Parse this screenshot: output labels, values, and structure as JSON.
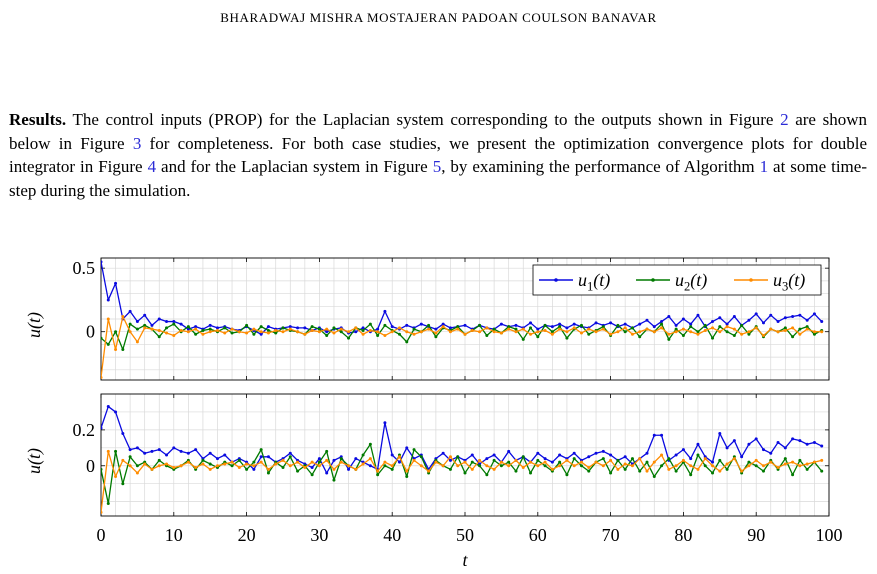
{
  "header": {
    "running_head": "BHARADWAJ MISHRA MOSTAJERAN PADOAN COULSON BANAVAR"
  },
  "paragraph": {
    "lead": "Results.",
    "text1": " The control inputs (PROP) for the Laplacian system corresponding to the outputs shown in Figure ",
    "ref_fig2": "2",
    "text2": " are shown below in Figure ",
    "ref_fig3": "3",
    "text3": " for completeness. For both case studies, we present the optimization convergence plots for double integrator in Figure ",
    "ref_fig4": "4",
    "text4": " and for the Laplacian system in Figure ",
    "ref_fig5": "5",
    "text5": ", by examining the performance of Algorithm ",
    "ref_alg1": "1",
    "text6": " at some time-step during the simulation."
  },
  "colors": {
    "u1": "#0a0ae0",
    "u2": "#007a00",
    "u3": "#ff8c00",
    "ref": "#2a2ad6"
  },
  "chart_data": [
    {
      "type": "line",
      "ylabel": "u(t)",
      "xlim": [
        0,
        100
      ],
      "ylim": [
        -0.38,
        0.58
      ],
      "y_ticks": [
        0,
        0.5
      ],
      "y_tick_labels": [
        "0",
        "0.5"
      ],
      "grid": true,
      "legend": "top-right",
      "legend_entries": [
        "u1(t)",
        "u2(t)",
        "u3(t)"
      ],
      "x": [
        0,
        1,
        2,
        3,
        4,
        5,
        6,
        7,
        8,
        9,
        10,
        11,
        12,
        13,
        14,
        15,
        16,
        17,
        18,
        19,
        20,
        21,
        22,
        23,
        24,
        25,
        26,
        27,
        28,
        29,
        30,
        31,
        32,
        33,
        34,
        35,
        36,
        37,
        38,
        39,
        40,
        41,
        42,
        43,
        44,
        45,
        46,
        47,
        48,
        49,
        50,
        51,
        52,
        53,
        54,
        55,
        56,
        57,
        58,
        59,
        60,
        61,
        62,
        63,
        64,
        65,
        66,
        67,
        68,
        69,
        70,
        71,
        72,
        73,
        74,
        75,
        76,
        77,
        78,
        79,
        80,
        81,
        82,
        83,
        84,
        85,
        86,
        87,
        88,
        89,
        90,
        91,
        92,
        93,
        94,
        95,
        96,
        97,
        98,
        99
      ],
      "series": [
        {
          "name": "u1(t)",
          "color": "#0a0ae0",
          "values": [
            0.55,
            0.25,
            0.38,
            0.1,
            0.16,
            0.08,
            0.13,
            0.05,
            0.1,
            0.08,
            0.08,
            0.06,
            0.02,
            0.04,
            0.02,
            0.05,
            0.03,
            0.04,
            0.02,
            0.01,
            0.04,
            0.01,
            -0.02,
            0.04,
            0.02,
            0.03,
            0.04,
            0.03,
            0.03,
            0.01,
            0.03,
            0.0,
            0.02,
            0.03,
            -0.01,
            0.0,
            0.03,
            0.0,
            0.02,
            0.16,
            0.04,
            0.02,
            0.05,
            0.03,
            0.06,
            0.04,
            0.02,
            0.06,
            0.03,
            0.04,
            0.05,
            0.02,
            0.05,
            0.03,
            0.02,
            0.06,
            0.04,
            0.05,
            0.03,
            0.07,
            0.02,
            0.05,
            0.04,
            0.06,
            0.03,
            0.06,
            0.04,
            0.03,
            0.07,
            0.05,
            0.07,
            0.04,
            0.06,
            0.03,
            0.06,
            0.09,
            0.04,
            0.08,
            0.12,
            0.05,
            0.1,
            0.06,
            0.13,
            0.04,
            0.08,
            0.11,
            0.06,
            0.12,
            0.05,
            0.09,
            0.14,
            0.07,
            0.13,
            0.08,
            0.11,
            0.12,
            0.13,
            0.09,
            0.14,
            0.08
          ]
        },
        {
          "name": "u2(t)",
          "color": "#007a00",
          "values": [
            -0.05,
            -0.1,
            0.0,
            -0.14,
            0.06,
            0.02,
            0.05,
            0.02,
            -0.04,
            0.03,
            0.06,
            0.0,
            0.04,
            -0.02,
            0.01,
            0.02,
            0.0,
            0.03,
            -0.01,
            0.0,
            0.05,
            -0.02,
            0.04,
            0.01,
            -0.01,
            0.03,
            0.01,
            0.0,
            -0.02,
            0.04,
            0.02,
            -0.03,
            0.03,
            0.0,
            -0.05,
            0.03,
            0.01,
            0.06,
            -0.03,
            0.05,
            0.01,
            -0.02,
            -0.08,
            0.02,
            0.0,
            0.05,
            -0.04,
            0.03,
            0.01,
            0.04,
            -0.02,
            0.01,
            0.05,
            -0.03,
            0.02,
            -0.01,
            0.04,
            0.02,
            -0.06,
            0.03,
            -0.04,
            0.05,
            0.0,
            0.04,
            -0.05,
            0.02,
            0.05,
            -0.02,
            0.01,
            0.04,
            -0.03,
            0.05,
            0.0,
            0.03,
            -0.04,
            0.02,
            0.0,
            0.06,
            -0.06,
            0.02,
            -0.03,
            0.04,
            0.0,
            0.05,
            -0.05,
            0.04,
            0.0,
            -0.03,
            0.05,
            -0.02,
            0.04,
            -0.04,
            0.02,
            0.0,
            0.03,
            -0.04,
            0.02,
            0.04,
            -0.02,
            0.01
          ]
        },
        {
          "name": "u3(t)",
          "color": "#ff8c00",
          "values": [
            -0.36,
            0.1,
            -0.14,
            0.12,
            0.0,
            -0.08,
            0.03,
            0.02,
            0.01,
            -0.01,
            -0.03,
            0.01,
            0.0,
            0.02,
            -0.02,
            0.0,
            0.01,
            -0.01,
            0.02,
            0.0,
            -0.01,
            0.02,
            0.0,
            -0.01,
            0.01,
            0.0,
            0.02,
            0.0,
            -0.02,
            0.01,
            0.0,
            0.02,
            -0.01,
            0.02,
            0.0,
            0.03,
            -0.02,
            0.01,
            0.0,
            -0.03,
            0.0,
            0.03,
            0.0,
            -0.02,
            0.0,
            0.02,
            -0.01,
            0.04,
            0.0,
            0.02,
            -0.02,
            0.01,
            0.0,
            0.03,
            0.0,
            -0.01,
            0.02,
            0.0,
            0.02,
            -0.02,
            0.0,
            0.01,
            -0.02,
            0.02,
            0.0,
            0.03,
            -0.01,
            0.02,
            0.0,
            0.02,
            -0.02,
            0.0,
            0.03,
            -0.02,
            0.0,
            0.02,
            0.0,
            0.03,
            -0.02,
            0.0,
            0.02,
            0.0,
            -0.02,
            0.01,
            0.03,
            0.0,
            0.04,
            0.02,
            -0.02,
            0.0,
            0.03,
            -0.03,
            0.02,
            0.0,
            0.01,
            0.03,
            -0.02,
            0.02,
            0.0,
            0.0
          ]
        }
      ]
    },
    {
      "type": "line",
      "xlabel": "t",
      "ylabel": "u(t)",
      "xlim": [
        0,
        100
      ],
      "ylim": [
        -0.28,
        0.4
      ],
      "y_ticks": [
        0,
        0.2
      ],
      "y_tick_labels": [
        "0",
        "0.2"
      ],
      "x_ticks": [
        0,
        10,
        20,
        30,
        40,
        50,
        60,
        70,
        80,
        90,
        100
      ],
      "x_tick_labels": [
        "0",
        "10",
        "20",
        "30",
        "40",
        "50",
        "60",
        "70",
        "80",
        "90",
        "100"
      ],
      "grid": true,
      "x": [
        0,
        1,
        2,
        3,
        4,
        5,
        6,
        7,
        8,
        9,
        10,
        11,
        12,
        13,
        14,
        15,
        16,
        17,
        18,
        19,
        20,
        21,
        22,
        23,
        24,
        25,
        26,
        27,
        28,
        29,
        30,
        31,
        32,
        33,
        34,
        35,
        36,
        37,
        38,
        39,
        40,
        41,
        42,
        43,
        44,
        45,
        46,
        47,
        48,
        49,
        50,
        51,
        52,
        53,
        54,
        55,
        56,
        57,
        58,
        59,
        60,
        61,
        62,
        63,
        64,
        65,
        66,
        67,
        68,
        69,
        70,
        71,
        72,
        73,
        74,
        75,
        76,
        77,
        78,
        79,
        80,
        81,
        82,
        83,
        84,
        85,
        86,
        87,
        88,
        89,
        90,
        91,
        92,
        93,
        94,
        95,
        96,
        97,
        98,
        99
      ],
      "series": [
        {
          "name": "u1(t)",
          "color": "#0a0ae0",
          "values": [
            0.21,
            0.33,
            0.3,
            0.18,
            0.09,
            0.1,
            0.07,
            0.08,
            0.09,
            0.06,
            0.1,
            0.08,
            0.07,
            0.09,
            0.04,
            0.07,
            0.04,
            0.06,
            0.02,
            0.04,
            0.02,
            -0.02,
            0.05,
            0.05,
            0.02,
            0.04,
            0.07,
            0.03,
            0.01,
            -0.01,
            0.04,
            -0.04,
            0.03,
            0.05,
            -0.02,
            0.04,
            0.02,
            0.0,
            -0.02,
            0.24,
            0.06,
            0.02,
            0.1,
            0.04,
            0.06,
            -0.02,
            0.04,
            0.07,
            0.03,
            0.05,
            0.03,
            0.06,
            0.01,
            0.04,
            0.06,
            0.02,
            0.08,
            0.03,
            0.05,
            0.02,
            0.07,
            0.04,
            0.02,
            0.06,
            0.04,
            0.07,
            0.03,
            0.05,
            0.07,
            0.08,
            0.06,
            0.03,
            0.05,
            0.01,
            0.04,
            0.07,
            0.17,
            0.17,
            0.03,
            0.06,
            0.09,
            0.04,
            0.12,
            0.05,
            0.02,
            0.18,
            0.1,
            0.14,
            0.05,
            0.12,
            0.15,
            0.09,
            0.07,
            0.13,
            0.1,
            0.15,
            0.14,
            0.12,
            0.13,
            0.11
          ]
        },
        {
          "name": "u2(t)",
          "color": "#007a00",
          "values": [
            -0.02,
            -0.21,
            0.08,
            -0.1,
            0.05,
            0.0,
            0.02,
            -0.02,
            0.03,
            0.0,
            -0.02,
            0.0,
            0.03,
            -0.02,
            0.03,
            0.01,
            -0.01,
            0.02,
            0.0,
            0.03,
            -0.02,
            0.02,
            0.09,
            -0.04,
            0.02,
            -0.01,
            0.05,
            -0.03,
            0.0,
            -0.05,
            0.02,
            0.08,
            -0.08,
            0.04,
            0.0,
            -0.02,
            0.06,
            0.12,
            -0.05,
            0.0,
            -0.02,
            0.06,
            -0.06,
            0.09,
            0.05,
            -0.04,
            0.03,
            0.0,
            -0.02,
            0.05,
            -0.04,
            0.02,
            0.0,
            -0.05,
            0.03,
            0.0,
            0.02,
            -0.03,
            0.05,
            -0.04,
            0.03,
            0.0,
            -0.03,
            0.02,
            -0.05,
            0.04,
            0.0,
            -0.03,
            0.02,
            0.04,
            -0.04,
            0.03,
            -0.02,
            0.04,
            -0.03,
            0.02,
            -0.06,
            0.0,
            0.04,
            -0.03,
            0.02,
            -0.05,
            0.06,
            0.0,
            -0.04,
            0.03,
            -0.02,
            0.05,
            -0.04,
            0.02,
            0.0,
            -0.03,
            0.03,
            -0.02,
            0.04,
            -0.05,
            0.03,
            -0.02,
            0.02,
            -0.03
          ]
        },
        {
          "name": "u3(t)",
          "color": "#ff8c00",
          "values": [
            -0.26,
            0.08,
            -0.06,
            0.03,
            0.0,
            -0.04,
            0.01,
            -0.02,
            0.0,
            0.01,
            -0.01,
            0.0,
            0.02,
            -0.01,
            0.01,
            -0.02,
            0.0,
            0.01,
            0.02,
            -0.01,
            0.01,
            0.0,
            0.02,
            -0.02,
            0.01,
            0.03,
            0.0,
            0.02,
            -0.01,
            0.02,
            0.0,
            0.03,
            -0.02,
            0.02,
            0.0,
            -0.02,
            0.01,
            0.04,
            -0.03,
            0.02,
            0.0,
            0.05,
            -0.03,
            0.03,
            0.0,
            -0.03,
            0.02,
            0.0,
            0.05,
            0.0,
            0.02,
            -0.02,
            0.03,
            0.0,
            -0.02,
            0.02,
            0.0,
            0.03,
            -0.01,
            0.02,
            0.0,
            0.02,
            -0.02,
            0.0,
            0.03,
            0.0,
            0.02,
            -0.01,
            0.02,
            0.0,
            0.03,
            -0.02,
            0.01,
            0.0,
            0.04,
            -0.03,
            0.02,
            0.06,
            -0.02,
            0.0,
            0.03,
            0.0,
            -0.02,
            0.04,
            0.0,
            -0.03,
            0.01,
            0.04,
            -0.03,
            0.0,
            0.03,
            0.0,
            0.02,
            -0.01,
            0.01,
            0.02,
            0.0,
            0.01,
            0.02,
            0.03
          ]
        }
      ]
    }
  ]
}
